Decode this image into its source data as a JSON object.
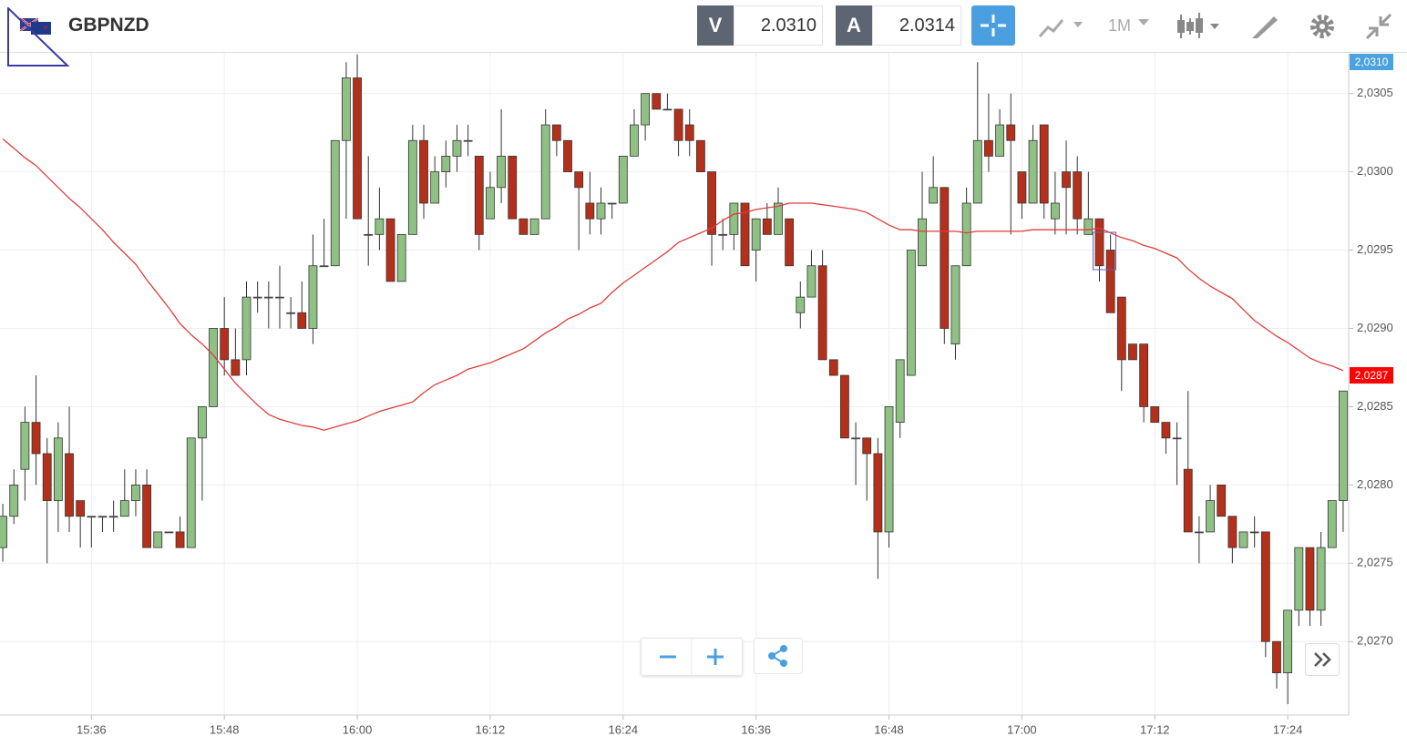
{
  "header": {
    "symbol": "GBPNZD",
    "bid_label": "V",
    "bid": "2.0310",
    "ask_label": "A",
    "ask": "2.0314",
    "timeframe": "1M"
  },
  "chart_data": {
    "type": "candlestick",
    "categories": [
      null,
      null,
      null,
      null,
      null,
      null,
      null,
      null,
      "15:36",
      null,
      null,
      null,
      null,
      null,
      null,
      null,
      null,
      null,
      null,
      null,
      "15:48",
      null,
      null,
      null,
      null,
      null,
      null,
      null,
      null,
      null,
      null,
      null,
      "16:00",
      null,
      null,
      null,
      null,
      null,
      null,
      null,
      null,
      null,
      null,
      null,
      "16:12",
      null,
      null,
      null,
      null,
      null,
      null,
      null,
      null,
      null,
      null,
      null,
      "16:24",
      null,
      null,
      null,
      null,
      null,
      null,
      null,
      null,
      null,
      null,
      null,
      "16:36",
      null,
      null,
      null,
      null,
      null,
      null,
      null,
      null,
      null,
      null,
      null,
      "16:48",
      null,
      null,
      null,
      null,
      null,
      null,
      null,
      null,
      null,
      null,
      null,
      "17:00",
      null,
      null,
      null,
      null,
      null,
      null,
      null,
      null,
      null,
      null,
      null,
      "17:12",
      null,
      null,
      null,
      null,
      null,
      null,
      null,
      null,
      null,
      null,
      null,
      "17:24",
      null,
      null,
      null,
      null,
      null
    ],
    "open": [
      2.0276,
      2.0278,
      2.0281,
      2.0284,
      2.0282,
      2.0279,
      2.0282,
      2.0279,
      2.0278,
      2.0278,
      2.0278,
      2.0278,
      2.0279,
      2.028,
      2.0276,
      2.0277,
      2.0277,
      2.0276,
      2.0283,
      2.0285,
      2.029,
      2.0288,
      2.0288,
      2.0292,
      2.0292,
      2.0292,
      2.0291,
      2.0291,
      2.029,
      2.0294,
      2.0294,
      2.0302,
      2.0306,
      2.0296,
      2.0296,
      2.0297,
      2.0293,
      2.0296,
      2.0302,
      2.0298,
      2.03,
      2.0301,
      2.0302,
      2.0301,
      2.0297,
      2.0299,
      2.0301,
      2.0297,
      2.0296,
      2.0297,
      2.0303,
      2.0302,
      2.03,
      2.0298,
      2.0297,
      2.0298,
      2.0298,
      2.0301,
      2.0303,
      2.0305,
      2.0304,
      2.0304,
      2.0303,
      2.0302,
      2.03,
      2.0296,
      2.0296,
      2.0298,
      2.0295,
      2.0297,
      2.0296,
      2.0297,
      2.0291,
      2.0292,
      2.0294,
      2.0288,
      2.0287,
      2.0283,
      2.0283,
      2.0282,
      2.0277,
      2.0284,
      2.0287,
      2.0294,
      2.0298,
      2.0299,
      2.0289,
      2.0294,
      2.0298,
      2.0302,
      2.0301,
      2.0303,
      2.03,
      2.0298,
      2.0303,
      2.0297,
      2.03,
      2.03,
      2.0296,
      2.0297,
      2.0295,
      2.0292,
      2.0289,
      2.0289,
      2.0285,
      2.0284,
      2.0283,
      2.0281,
      2.0277,
      2.0277,
      2.028,
      2.0278,
      2.0276,
      2.0277,
      2.0277,
      2.027,
      2.0268,
      2.0272,
      2.0276,
      2.0272,
      2.0276,
      2.0279
    ],
    "high": [
      2.02788,
      2.0281,
      2.0285,
      2.0287,
      2.0283,
      2.0284,
      2.0285,
      2.0279,
      2.0278,
      2.0278,
      2.0279,
      2.0281,
      2.0281,
      2.0281,
      2.0277,
      2.0277,
      2.0278,
      2.0283,
      2.0285,
      2.029,
      2.0292,
      2.029,
      2.0293,
      2.0293,
      2.0293,
      2.0294,
      2.0292,
      2.0293,
      2.0296,
      2.0297,
      2.0302,
      2.0307,
      2.03075,
      2.0301,
      2.0299,
      2.0297,
      2.0296,
      2.0303,
      2.0303,
      2.0301,
      2.0302,
      2.0303,
      2.0303,
      2.0301,
      2.03,
      2.0304,
      2.0301,
      2.0297,
      2.0297,
      2.0304,
      2.0303,
      2.0302,
      2.03,
      2.03,
      2.0299,
      2.0298,
      2.0301,
      2.0304,
      2.0305,
      2.0305,
      2.0305,
      2.0304,
      2.0304,
      2.0302,
      2.03,
      2.0297,
      2.0298,
      2.0298,
      2.0297,
      2.0298,
      2.0299,
      2.0297,
      2.0293,
      2.0295,
      2.0295,
      2.0288,
      2.0287,
      2.0284,
      2.0283,
      2.0283,
      2.0285,
      2.0288,
      2.0295,
      2.03,
      2.0301,
      2.0299,
      2.0294,
      2.0299,
      2.0307,
      2.0305,
      2.0304,
      2.0305,
      2.03,
      2.0303,
      2.0303,
      2.03,
      2.0302,
      2.0301,
      2.03,
      2.0297,
      2.0296,
      2.0292,
      2.0289,
      2.0289,
      2.0285,
      2.0284,
      2.0284,
      2.0286,
      2.0278,
      2.028,
      2.028,
      2.0278,
      2.0277,
      2.0278,
      2.0277,
      2.027,
      2.0272,
      2.0276,
      2.0276,
      2.0277,
      2.0279,
      2.0286
    ],
    "low": [
      2.02751,
      2.02775,
      2.0279,
      2.028,
      2.0275,
      2.0277,
      2.0277,
      2.0276,
      2.0276,
      2.0277,
      2.0277,
      2.0278,
      2.0278,
      2.0276,
      2.0276,
      2.0277,
      2.0276,
      2.0276,
      2.0279,
      2.0285,
      2.0287,
      2.0287,
      2.0287,
      2.0291,
      2.029,
      2.029,
      2.029,
      2.029,
      2.0289,
      2.0294,
      2.0294,
      2.0297,
      2.0297,
      2.0294,
      2.0295,
      2.0293,
      2.0293,
      2.0296,
      2.0297,
      2.0298,
      2.0299,
      2.03,
      2.0301,
      2.0295,
      2.0297,
      2.0298,
      2.0297,
      2.0296,
      2.0296,
      2.0297,
      2.0301,
      2.03,
      2.0295,
      2.0296,
      2.0296,
      2.0297,
      2.0298,
      2.0301,
      2.0302,
      2.0304,
      2.0304,
      2.0301,
      2.0301,
      2.03,
      2.0294,
      2.0295,
      2.0295,
      2.0294,
      2.0293,
      2.0296,
      2.0296,
      2.0294,
      2.029,
      2.0292,
      2.0288,
      2.0287,
      2.0283,
      2.028,
      2.0279,
      2.0274,
      2.0276,
      2.0283,
      2.0287,
      2.0294,
      2.0298,
      2.0289,
      2.0288,
      2.0294,
      2.0298,
      2.03,
      2.0301,
      2.0296,
      2.0297,
      2.0298,
      2.0297,
      2.0296,
      2.0296,
      2.0296,
      2.0296,
      2.0293,
      2.0291,
      2.0286,
      2.0288,
      2.0284,
      2.0284,
      2.0282,
      2.028,
      2.0277,
      2.0275,
      2.0277,
      2.0278,
      2.0275,
      2.0276,
      2.0276,
      2.0269,
      2.0267,
      2.0266,
      2.0271,
      2.0271,
      2.0271,
      2.0276,
      2.0277
    ],
    "close": [
      2.0278,
      2.028,
      2.0284,
      2.0282,
      2.0279,
      2.0283,
      2.0278,
      2.0278,
      2.0278,
      2.0278,
      2.0278,
      2.0279,
      2.028,
      2.0276,
      2.0277,
      2.0277,
      2.0276,
      2.0283,
      2.0285,
      2.029,
      2.0288,
      2.0287,
      2.0292,
      2.0292,
      2.0292,
      2.0292,
      2.0291,
      2.029,
      2.0294,
      2.0294,
      2.0302,
      2.0306,
      2.0297,
      2.0296,
      2.0297,
      2.0293,
      2.0296,
      2.0302,
      2.0298,
      2.03,
      2.0301,
      2.0302,
      2.0302,
      2.0296,
      2.0299,
      2.0301,
      2.0297,
      2.0296,
      2.0297,
      2.0303,
      2.0302,
      2.03,
      2.0299,
      2.0297,
      2.0298,
      2.0298,
      2.0301,
      2.0303,
      2.0305,
      2.0304,
      2.0304,
      2.0302,
      2.0302,
      2.03,
      2.0296,
      2.0296,
      2.0298,
      2.0294,
      2.0297,
      2.0296,
      2.0298,
      2.0294,
      2.0292,
      2.0294,
      2.0288,
      2.0287,
      2.0283,
      2.0283,
      2.0282,
      2.0277,
      2.0285,
      2.0288,
      2.0295,
      2.0297,
      2.0299,
      2.029,
      2.0294,
      2.0298,
      2.0302,
      2.0301,
      2.0303,
      2.0302,
      2.0298,
      2.0302,
      2.0298,
      2.0298,
      2.0299,
      2.0297,
      2.0297,
      2.0294,
      2.0291,
      2.0288,
      2.0288,
      2.0285,
      2.0284,
      2.0283,
      2.0283,
      2.0277,
      2.0277,
      2.0279,
      2.0278,
      2.0276,
      2.0277,
      2.0277,
      2.027,
      2.0268,
      2.0272,
      2.0276,
      2.0272,
      2.0276,
      2.0279,
      2.0286
    ],
    "up_color": "#8fc185",
    "down_color": "#b5301b",
    "doji_color": "#444444",
    "moving_average": {
      "color": "#e03c3c",
      "values": [
        2.03021,
        2.03015,
        2.03009,
        2.03004,
        2.02997,
        2.0299,
        2.02983,
        2.02977,
        2.0297,
        2.02963,
        2.02955,
        2.02948,
        2.02941,
        2.02931,
        2.02922,
        2.02913,
        2.02903,
        2.02896,
        2.0289,
        2.02883,
        2.02874,
        2.02865,
        2.02858,
        2.02851,
        2.02845,
        2.02842,
        2.0284,
        2.02838,
        2.02837,
        2.02835,
        2.02837,
        2.02839,
        2.02841,
        2.02844,
        2.02847,
        2.02849,
        2.02851,
        2.02853,
        2.02859,
        2.02864,
        2.02867,
        2.0287,
        2.02874,
        2.02876,
        2.02878,
        2.02881,
        2.02884,
        2.02887,
        2.02892,
        2.02897,
        2.02901,
        2.02906,
        2.02909,
        2.02913,
        2.02916,
        2.02923,
        2.02929,
        2.02934,
        2.02939,
        2.02944,
        2.02949,
        2.02955,
        2.02958,
        2.02961,
        2.02964,
        2.02969,
        2.02973,
        2.02974,
        2.02976,
        2.02977,
        2.02978,
        2.0298,
        2.0298,
        2.0298,
        2.02979,
        2.02978,
        2.02977,
        2.02976,
        2.02974,
        2.0297,
        2.02966,
        2.02963,
        2.02963,
        2.02962,
        2.02962,
        2.02962,
        2.02962,
        2.02961,
        2.02962,
        2.02962,
        2.02962,
        2.02962,
        2.02962,
        2.02963,
        2.02963,
        2.02963,
        2.02963,
        2.02963,
        2.02963,
        2.02964,
        2.02961,
        2.02958,
        2.02956,
        2.02953,
        2.02951,
        2.02948,
        2.02945,
        2.02938,
        2.02932,
        2.02927,
        2.02923,
        2.02919,
        2.02912,
        2.02905,
        2.029,
        2.02895,
        2.02891,
        2.02886,
        2.02881,
        2.02878,
        2.02876,
        2.02873
      ]
    },
    "ylim": [
      2.02653,
      2.03076
    ],
    "yticks": [
      {
        "value": 2.027,
        "label": "2,0270"
      },
      {
        "value": 2.0275,
        "label": "2,0275"
      },
      {
        "value": 2.028,
        "label": "2,0280"
      },
      {
        "value": 2.0285,
        "label": "2,0285"
      },
      {
        "value": 2.029,
        "label": "2,0290"
      },
      {
        "value": 2.0295,
        "label": "2,0295"
      },
      {
        "value": 2.03,
        "label": "2,0300"
      },
      {
        "value": 2.0305,
        "label": "2,0305"
      }
    ],
    "grid": true,
    "price_tags": [
      {
        "value": 2.031,
        "label": "2,0310",
        "color": "#4aa3df"
      },
      {
        "value": 2.0287,
        "label": "2,0287",
        "color": "#ff0000"
      }
    ]
  }
}
